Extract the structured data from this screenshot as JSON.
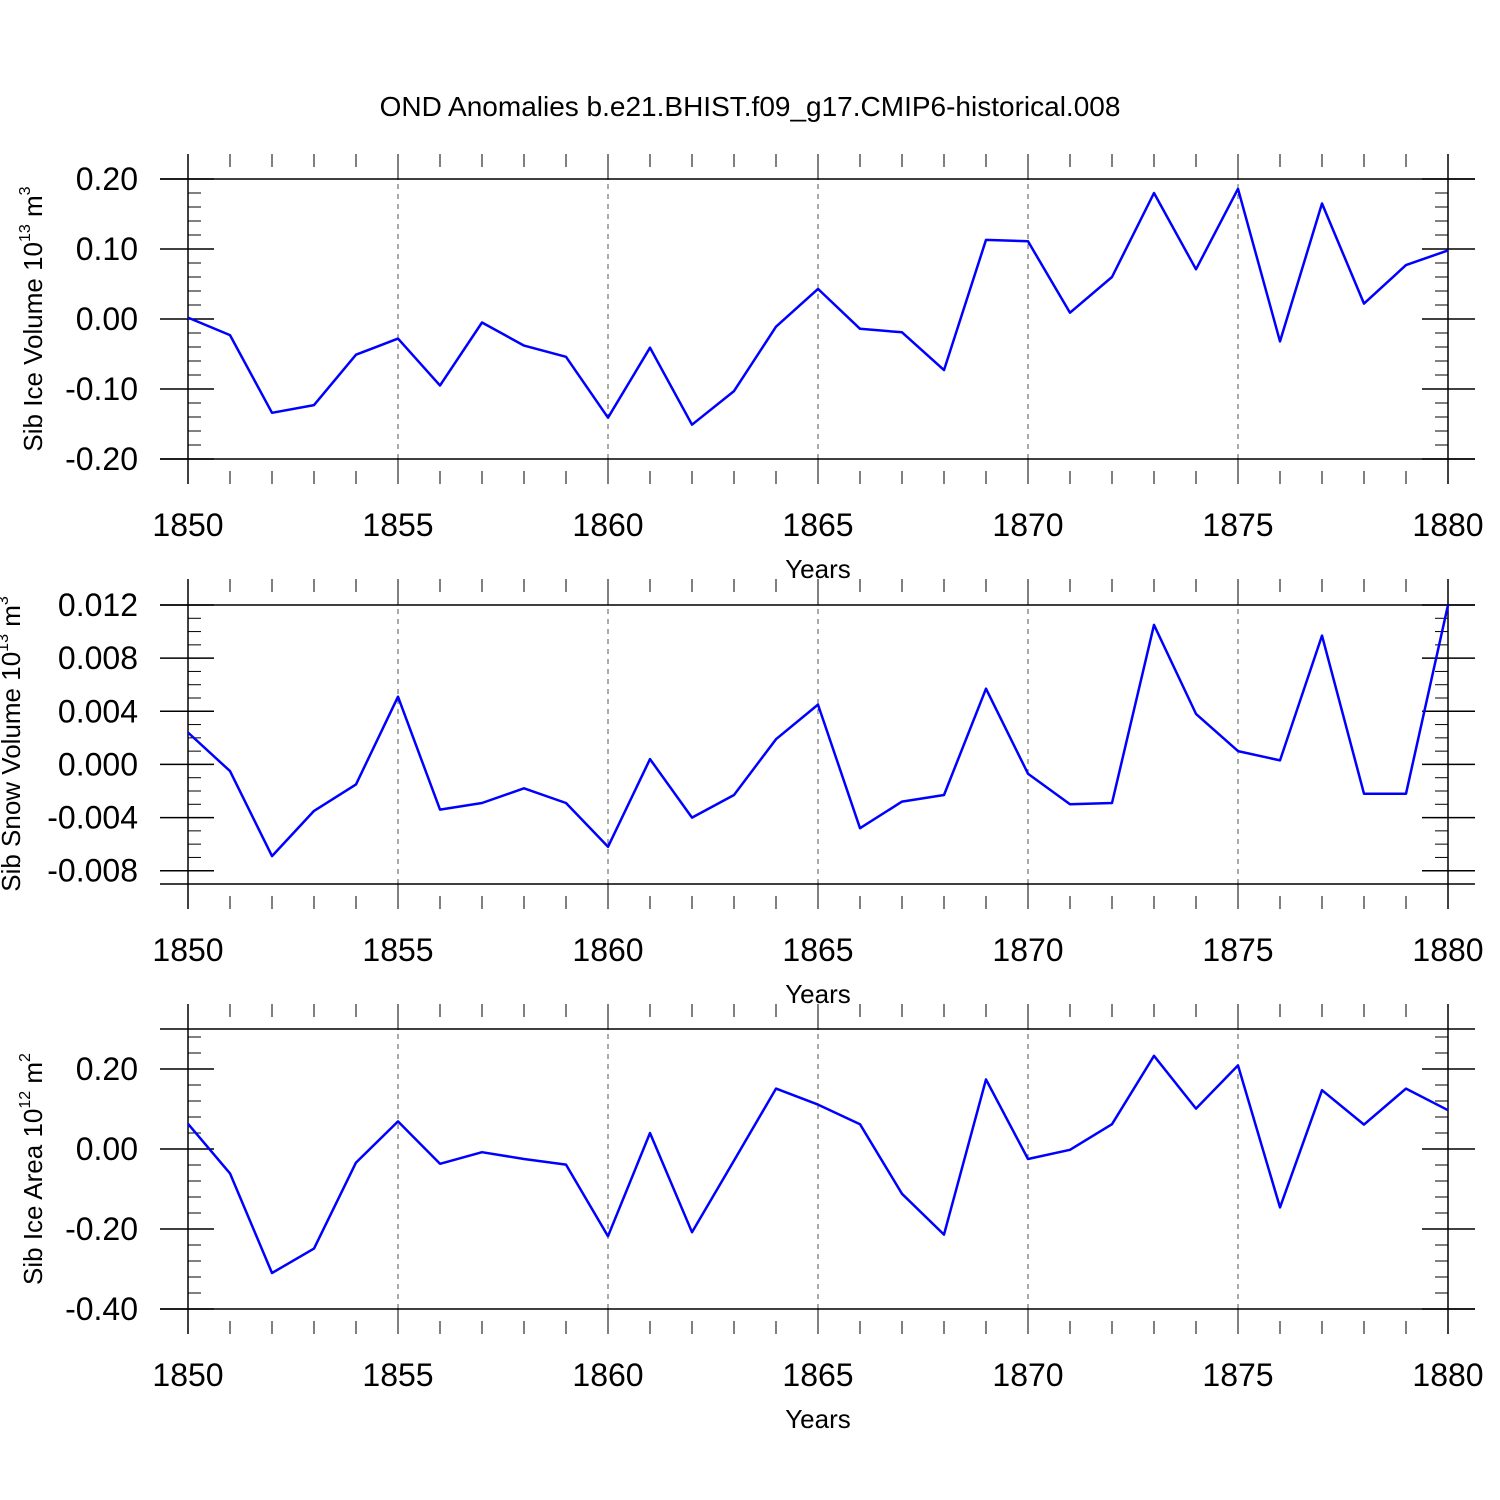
{
  "title": "OND Anomalies b.e21.BHIST.f09_g17.CMIP6-historical.008",
  "colors": {
    "line": "#0000ff",
    "axis": "#000000",
    "grid": "#555555"
  },
  "chart_data": [
    {
      "type": "line",
      "ylabel": "Sib Ice Volume 10",
      "ylabel_sup": "13",
      "ylabel_unit": " m",
      "ylabel_unit_sup": "3",
      "xlabel": "Years",
      "xlim": [
        1850,
        1880
      ],
      "ylim": [
        -0.2,
        0.2
      ],
      "x_ticks": [
        "1850",
        "1855",
        "1860",
        "1865",
        "1870",
        "1875",
        "1880"
      ],
      "y_ticks": [
        "0.20",
        "0.10",
        "0.00",
        "-0.10",
        "-0.20"
      ],
      "y_tick_values": [
        0.2,
        0.1,
        0.0,
        -0.1,
        -0.2
      ],
      "y_minor_step": 0.02,
      "grid": "vertical dashed at major x ticks",
      "x": [
        1850,
        1851,
        1852,
        1853,
        1854,
        1855,
        1856,
        1857,
        1858,
        1859,
        1860,
        1861,
        1862,
        1863,
        1864,
        1865,
        1866,
        1867,
        1868,
        1869,
        1870,
        1871,
        1872,
        1873,
        1874,
        1875,
        1876,
        1877,
        1878,
        1879,
        1880
      ],
      "values": [
        0.002,
        -0.023,
        -0.134,
        -0.123,
        -0.051,
        -0.028,
        -0.095,
        -0.005,
        -0.038,
        -0.054,
        -0.141,
        -0.041,
        -0.151,
        -0.103,
        -0.011,
        0.043,
        -0.014,
        -0.019,
        -0.073,
        0.113,
        0.111,
        0.009,
        0.06,
        0.18,
        0.071,
        0.186,
        -0.032,
        0.165,
        0.022,
        0.077,
        0.098
      ]
    },
    {
      "type": "line",
      "ylabel": "Sib Snow Volume 10",
      "ylabel_sup": "13",
      "ylabel_unit": " m",
      "ylabel_unit_sup": "3",
      "xlabel": "Years",
      "xlim": [
        1850,
        1880
      ],
      "ylim": [
        -0.009,
        0.012
      ],
      "x_ticks": [
        "1850",
        "1855",
        "1860",
        "1865",
        "1870",
        "1875",
        "1880"
      ],
      "y_ticks": [
        "0.012",
        "0.008",
        "0.004",
        "0.000",
        "-0.004",
        "-0.008"
      ],
      "y_tick_values": [
        0.012,
        0.008,
        0.004,
        0.0,
        -0.004,
        -0.008
      ],
      "y_minor_step": 0.001,
      "grid": "vertical dashed at major x ticks",
      "x": [
        1850,
        1851,
        1852,
        1853,
        1854,
        1855,
        1856,
        1857,
        1858,
        1859,
        1860,
        1861,
        1862,
        1863,
        1864,
        1865,
        1866,
        1867,
        1868,
        1869,
        1870,
        1871,
        1872,
        1873,
        1874,
        1875,
        1876,
        1877,
        1878,
        1879,
        1880
      ],
      "values": [
        0.0024,
        -0.0005,
        -0.0069,
        -0.0035,
        -0.0015,
        0.0051,
        -0.0034,
        -0.0029,
        -0.0018,
        -0.0029,
        -0.0062,
        0.0004,
        -0.004,
        -0.0023,
        0.0019,
        0.0045,
        -0.0048,
        -0.0028,
        -0.0023,
        0.0057,
        -0.0007,
        -0.003,
        -0.0029,
        0.0105,
        0.0038,
        0.001,
        0.0003,
        0.0097,
        -0.0022,
        -0.0022,
        0.012
      ]
    },
    {
      "type": "line",
      "ylabel": "Sib Ice Area 10",
      "ylabel_sup": "12",
      "ylabel_unit": " m",
      "ylabel_unit_sup": "2",
      "xlabel": "Years",
      "xlim": [
        1850,
        1880
      ],
      "ylim": [
        -0.4,
        0.3
      ],
      "x_ticks": [
        "1850",
        "1855",
        "1860",
        "1865",
        "1870",
        "1875",
        "1880"
      ],
      "y_ticks": [
        "0.20",
        "0.00",
        "-0.20",
        "-0.40"
      ],
      "y_tick_values": [
        0.2,
        0.0,
        -0.2,
        -0.4
      ],
      "y_minor_step": 0.04,
      "grid": "vertical dashed at major x ticks",
      "x": [
        1850,
        1851,
        1852,
        1853,
        1854,
        1855,
        1856,
        1857,
        1858,
        1859,
        1860,
        1861,
        1862,
        1863,
        1864,
        1865,
        1866,
        1867,
        1868,
        1869,
        1870,
        1871,
        1872,
        1873,
        1874,
        1875,
        1876,
        1877,
        1878,
        1879,
        1880
      ],
      "values": [
        0.063,
        -0.061,
        -0.31,
        -0.249,
        -0.034,
        0.069,
        -0.037,
        -0.008,
        -0.025,
        -0.039,
        -0.218,
        0.04,
        -0.208,
        -0.029,
        0.151,
        0.111,
        0.062,
        -0.112,
        -0.214,
        0.174,
        -0.025,
        -0.002,
        0.062,
        0.233,
        0.101,
        0.209,
        -0.146,
        0.147,
        0.061,
        0.151,
        0.097
      ]
    }
  ]
}
